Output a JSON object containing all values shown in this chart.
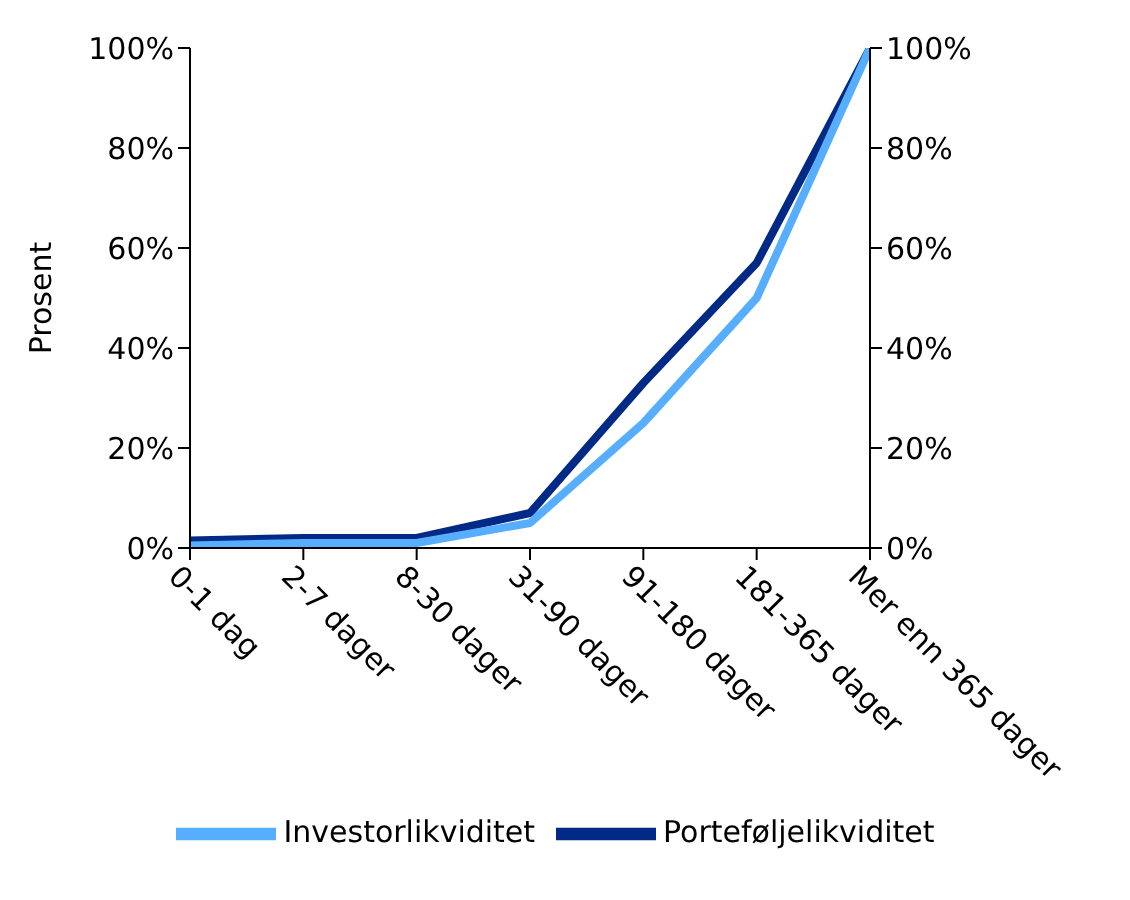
{
  "chart_data": {
    "type": "line",
    "ylabel": "Prosent",
    "categories": [
      "0-1 dag",
      "2-7 dager",
      "8-30 dager",
      "31-90 dager",
      "91-180 dager",
      "181-365 dager",
      "Mer enn 365 dager"
    ],
    "series": [
      {
        "name": "Porteføljelikviditet",
        "color": "#002a85",
        "values": [
          1.5,
          2,
          2,
          7,
          33,
          57,
          100
        ]
      },
      {
        "name": "Investorlikviditet",
        "color": "#57aeff",
        "values": [
          0.5,
          1,
          1,
          5,
          25,
          50,
          100
        ]
      }
    ],
    "ylim": [
      0,
      100
    ],
    "yticks": [
      {
        "value": 0,
        "label": "0%"
      },
      {
        "value": 20,
        "label": "20%"
      },
      {
        "value": 40,
        "label": "40%"
      },
      {
        "value": 60,
        "label": "60%"
      },
      {
        "value": 80,
        "label": "80%"
      },
      {
        "value": 100,
        "label": "100%"
      }
    ],
    "y2lim": [
      0,
      100
    ],
    "y2ticks": [
      {
        "value": 0,
        "label": "0%"
      },
      {
        "value": 20,
        "label": "20%"
      },
      {
        "value": 40,
        "label": "40%"
      },
      {
        "value": 60,
        "label": "60%"
      },
      {
        "value": 80,
        "label": "80%"
      },
      {
        "value": 100,
        "label": "100%"
      }
    ],
    "grid": false,
    "legend": "bottom",
    "marker": "none",
    "line_style": "solid"
  }
}
